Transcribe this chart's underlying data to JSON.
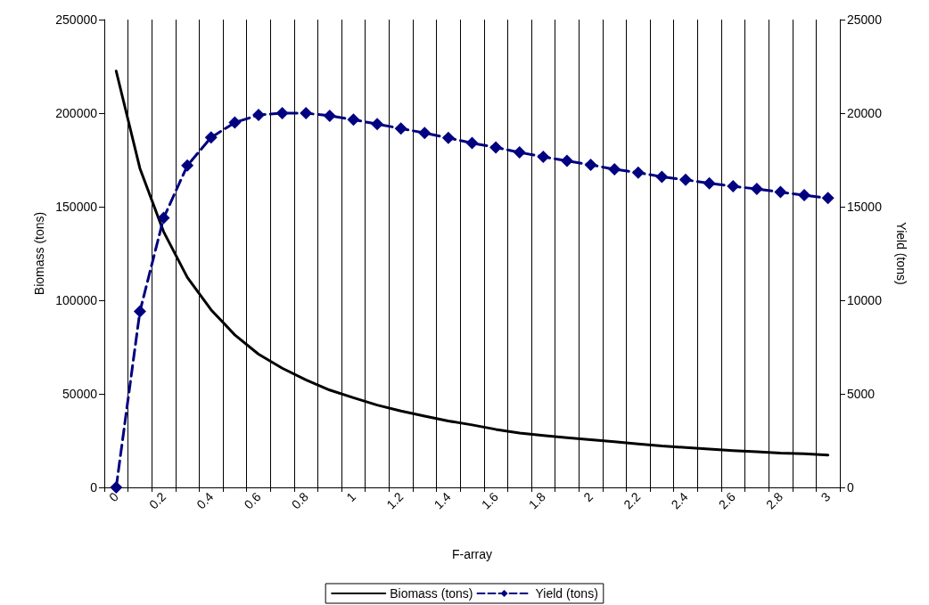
{
  "chart_data": {
    "type": "line",
    "xlabel": "F-array",
    "ylabel": "Biomass (tons)",
    "y2label": "Yield (tons)",
    "categories": [
      "0",
      null,
      "0.2",
      null,
      "0.4",
      null,
      "0.6",
      null,
      "0.8",
      null,
      "1",
      null,
      "1.2",
      null,
      "1.4",
      null,
      "1.6",
      null,
      "1.8",
      null,
      "2",
      null,
      "2.2",
      null,
      "2.4",
      null,
      "2.6",
      null,
      "2.8",
      null,
      "3"
    ],
    "series": [
      {
        "name": "Biomass (tons)",
        "color": "#000000",
        "marker": "none",
        "line_style": "solid",
        "values": [
          222500,
          170500,
          136600,
          112200,
          94900,
          81500,
          71200,
          63700,
          57400,
          52000,
          47900,
          44000,
          40800,
          38100,
          35500,
          33400,
          31000,
          29000,
          27700,
          26600,
          25500,
          24400,
          23200,
          22100,
          21300,
          20500,
          19700,
          19100,
          18300,
          18000,
          17300
        ]
      },
      {
        "name": "Yield (tons)",
        "color": "#000080",
        "marker": "diamond",
        "line_style": "dashed",
        "axis": "y2",
        "values": [
          0,
          9400,
          14400,
          17200,
          18700,
          19500,
          19900,
          20000,
          20000,
          19860,
          19650,
          19420,
          19180,
          18940,
          18680,
          18400,
          18170,
          17900,
          17670,
          17450,
          17240,
          17000,
          16820,
          16600,
          16440,
          16250,
          16090,
          15950,
          15780,
          15620,
          15460
        ]
      }
    ],
    "ylim": [
      0,
      250000
    ],
    "yticks": [
      0,
      50000,
      100000,
      150000,
      200000,
      250000
    ],
    "y2lim": [
      0,
      25000
    ],
    "y2ticks": [
      0,
      5000,
      10000,
      15000,
      20000,
      25000
    ],
    "grid": "x",
    "legend": "bottom"
  }
}
